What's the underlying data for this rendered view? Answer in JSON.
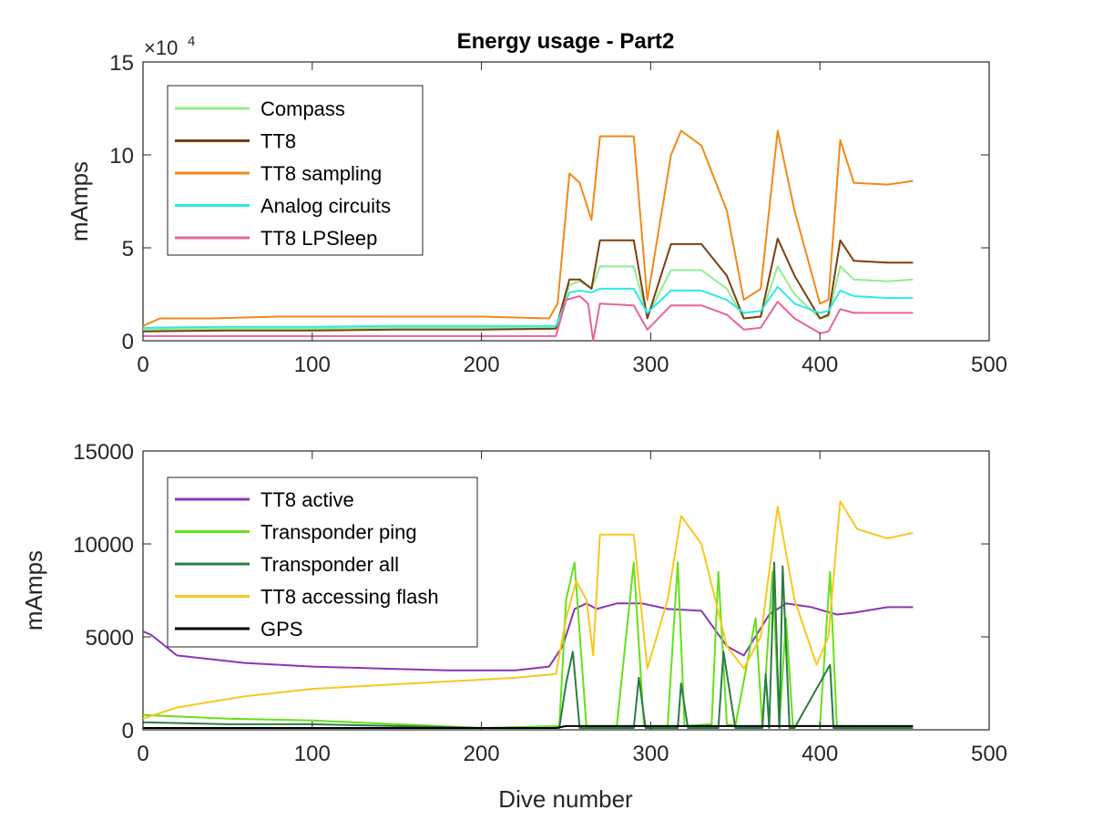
{
  "chart_data": [
    {
      "type": "line",
      "title": "Energy usage - Part2",
      "xlabel": "",
      "ylabel": "mAmps",
      "xlim": [
        0,
        500
      ],
      "ylim": [
        0,
        150000
      ],
      "x_ticks": [
        "0",
        "100",
        "200",
        "300",
        "400",
        "500"
      ],
      "y_ticks": [
        "0",
        "5",
        "10",
        "15"
      ],
      "y_exponent": {
        "base": "×10",
        "power": "4"
      },
      "legend_position": "top-left",
      "series": [
        {
          "name": "Compass",
          "color": "#90ee90",
          "x": [
            0,
            50,
            100,
            150,
            200,
            244,
            252,
            258,
            265,
            270,
            290,
            298,
            312,
            330,
            345,
            355,
            365,
            375,
            385,
            400,
            405,
            412,
            420,
            440,
            455
          ],
          "y": [
            6000,
            6500,
            6500,
            7000,
            7000,
            7000,
            30000,
            32000,
            28000,
            40000,
            40000,
            13000,
            38000,
            38000,
            28000,
            12000,
            13000,
            40000,
            25000,
            12000,
            13000,
            40000,
            33000,
            32000,
            33000
          ]
        },
        {
          "name": "TT8",
          "color": "#7b3f10",
          "x": [
            0,
            50,
            100,
            150,
            200,
            244,
            252,
            258,
            265,
            270,
            290,
            298,
            312,
            330,
            345,
            355,
            365,
            375,
            385,
            400,
            405,
            412,
            420,
            440,
            455
          ],
          "y": [
            5000,
            5500,
            5500,
            6000,
            6000,
            6500,
            33000,
            33000,
            28000,
            54000,
            54000,
            12000,
            52000,
            52000,
            35000,
            12000,
            13000,
            55000,
            35000,
            12000,
            14000,
            54000,
            43000,
            42000,
            42000
          ]
        },
        {
          "name": "TT8 sampling",
          "color": "#f08a19",
          "x": [
            0,
            10,
            40,
            80,
            120,
            160,
            200,
            240,
            245,
            252,
            258,
            265,
            270,
            290,
            298,
            312,
            318,
            330,
            345,
            355,
            365,
            375,
            385,
            400,
            405,
            412,
            420,
            440,
            455
          ],
          "y": [
            8000,
            12000,
            12000,
            13000,
            13000,
            13000,
            13000,
            12000,
            20000,
            90000,
            85000,
            65000,
            110000,
            110000,
            22000,
            100000,
            113000,
            105000,
            70000,
            22000,
            28000,
            113000,
            70000,
            20000,
            22000,
            108000,
            85000,
            84000,
            86000
          ]
        },
        {
          "name": "Analog circuits",
          "color": "#2ee8e8",
          "x": [
            0,
            50,
            100,
            150,
            200,
            244,
            252,
            258,
            265,
            270,
            290,
            298,
            312,
            330,
            345,
            355,
            365,
            375,
            385,
            400,
            405,
            412,
            420,
            440,
            455
          ],
          "y": [
            7000,
            7500,
            7500,
            8000,
            8000,
            8000,
            26000,
            27000,
            26000,
            28000,
            28000,
            15000,
            27000,
            27000,
            22000,
            15000,
            16000,
            29000,
            20000,
            15000,
            16000,
            27000,
            24000,
            23000,
            23000
          ]
        },
        {
          "name": "TT8 LPSleep",
          "color": "#e7649a",
          "x": [
            0,
            50,
            100,
            150,
            200,
            244,
            250,
            258,
            263,
            266,
            270,
            290,
            298,
            312,
            330,
            345,
            355,
            365,
            375,
            385,
            400,
            405,
            412,
            420,
            440,
            455
          ],
          "y": [
            2500,
            2500,
            2500,
            2500,
            2500,
            2500,
            22000,
            24000,
            20000,
            0,
            20000,
            19000,
            6000,
            19000,
            19000,
            14000,
            6000,
            7000,
            21000,
            12000,
            4000,
            5000,
            17000,
            15000,
            15000,
            15000
          ]
        }
      ]
    },
    {
      "type": "line",
      "title": "",
      "xlabel": "Dive number",
      "ylabel": "mAmps",
      "xlim": [
        0,
        500
      ],
      "ylim": [
        0,
        15000
      ],
      "x_ticks": [
        "0",
        "100",
        "200",
        "300",
        "400",
        "500"
      ],
      "y_ticks": [
        "0",
        "5000",
        "10000",
        "15000"
      ],
      "legend_position": "top-left",
      "series": [
        {
          "name": "TT8 active",
          "color": "#8b35b5",
          "x": [
            0,
            5,
            20,
            60,
            100,
            140,
            180,
            220,
            240,
            248,
            255,
            262,
            268,
            280,
            295,
            310,
            330,
            345,
            355,
            370,
            380,
            395,
            410,
            420,
            440,
            455
          ],
          "y": [
            5300,
            5100,
            4000,
            3600,
            3400,
            3300,
            3200,
            3200,
            3400,
            4500,
            6500,
            6800,
            6500,
            6800,
            6800,
            6500,
            6400,
            4500,
            4000,
            6200,
            6800,
            6600,
            6200,
            6300,
            6600,
            6600
          ]
        },
        {
          "name": "Transponder ping",
          "color": "#66e01a",
          "x": [
            0,
            50,
            100,
            150,
            200,
            246,
            250,
            255,
            262,
            280,
            290,
            296,
            310,
            316,
            320,
            336,
            340,
            345,
            350,
            362,
            366,
            372,
            376,
            380,
            384,
            400,
            406,
            410,
            420,
            455
          ],
          "y": [
            800,
            600,
            500,
            300,
            100,
            200,
            7000,
            9000,
            200,
            200,
            9000,
            200,
            200,
            9000,
            200,
            300,
            8500,
            300,
            200,
            6000,
            200,
            8500,
            200,
            6000,
            200,
            200,
            8500,
            200,
            200,
            100
          ]
        },
        {
          "name": "Transponder all",
          "color": "#2a7d43",
          "x": [
            0,
            50,
            100,
            150,
            200,
            246,
            250,
            254,
            258,
            290,
            293,
            297,
            316,
            318,
            322,
            340,
            343,
            350,
            366,
            368,
            370,
            373,
            376,
            378,
            382,
            385,
            406,
            408,
            412,
            455
          ],
          "y": [
            400,
            300,
            300,
            200,
            100,
            100,
            2500,
            4200,
            100,
            100,
            2800,
            100,
            100,
            2500,
            100,
            100,
            4200,
            100,
            100,
            3000,
            100,
            9000,
            100,
            8800,
            100,
            100,
            3500,
            100,
            100,
            100
          ]
        },
        {
          "name": "TT8 accessing flash",
          "color": "#f7c81e",
          "x": [
            0,
            20,
            60,
            100,
            140,
            180,
            220,
            244,
            250,
            256,
            262,
            266,
            270,
            290,
            298,
            310,
            318,
            330,
            345,
            355,
            365,
            375,
            385,
            398,
            405,
            412,
            422,
            440,
            455
          ],
          "y": [
            600,
            1200,
            1800,
            2200,
            2400,
            2600,
            2800,
            3000,
            6000,
            8000,
            7000,
            4000,
            10500,
            10500,
            3300,
            7000,
            11500,
            10000,
            4500,
            3300,
            5000,
            12000,
            7000,
            3500,
            5000,
            12300,
            10800,
            10300,
            10600
          ]
        },
        {
          "name": "GPS",
          "color": "#000000",
          "x": [
            0,
            50,
            100,
            150,
            200,
            244,
            250,
            300,
            350,
            400,
            455
          ],
          "y": [
            100,
            100,
            100,
            100,
            100,
            100,
            200,
            200,
            200,
            200,
            200
          ]
        }
      ]
    }
  ]
}
